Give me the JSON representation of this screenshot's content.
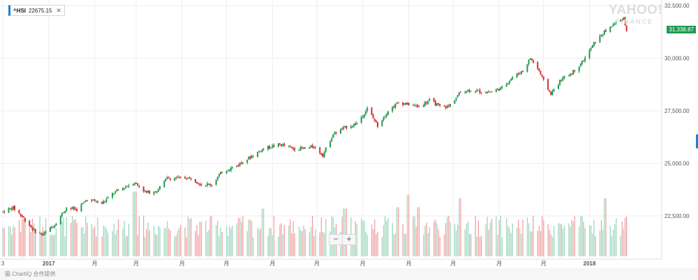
{
  "legend": {
    "symbol": "^HSI",
    "value": "22675.15",
    "close_label": "✕"
  },
  "watermark": {
    "brand": "YAHOO!",
    "sub": "FINANCE"
  },
  "price_tag": "31,338.87",
  "zoom": {
    "minus": "−",
    "plus": "+"
  },
  "footer": {
    "text": "圖 ChartIQ 合作提供"
  },
  "colors": {
    "up": "#1f9a52",
    "down": "#d62d2d",
    "up_volume": "#9fd6bd",
    "down_volume": "#f2a0a0",
    "grid": "#eeeeee"
  },
  "chart_data": {
    "type": "candlestick",
    "title": "",
    "xlabel": "",
    "ylabel": "",
    "ylim": [
      20000,
      32500
    ],
    "grid": true,
    "y_ticks": [
      "32,500.00",
      "30,000.00",
      "27,500.00",
      "25,000.00",
      "22,500.00"
    ],
    "y_tick_values": [
      32500,
      30000,
      27500,
      25000,
      22500
    ],
    "x_ticks": [
      {
        "label": "3",
        "x": "2016-12-01"
      },
      {
        "label": "2017",
        "x": "2017-01-01",
        "bold": true
      },
      {
        "label": "月",
        "x": "2017-02-01"
      },
      {
        "label": "月",
        "x": "2017-03-01"
      },
      {
        "label": "月",
        "x": "2017-04-01"
      },
      {
        "label": "月",
        "x": "2017-05-01"
      },
      {
        "label": "月",
        "x": "2017-06-01"
      },
      {
        "label": "月",
        "x": "2017-07-01"
      },
      {
        "label": "月",
        "x": "2017-08-01"
      },
      {
        "label": "月",
        "x": "2017-09-01"
      },
      {
        "label": "月",
        "x": "2017-10-01"
      },
      {
        "label": "月",
        "x": "2017-11-01"
      },
      {
        "label": "月",
        "x": "2017-12-01"
      },
      {
        "label": "2018",
        "x": "2018-01-01",
        "bold": true
      }
    ],
    "x_range": [
      "2016-12-01",
      "2018-01-29"
    ],
    "last_close": 31338.87,
    "price_path": [
      [
        "2016-12-01",
        22700
      ],
      [
        "2016-12-08",
        22900
      ],
      [
        "2016-12-15",
        22400
      ],
      [
        "2016-12-22",
        21800
      ],
      [
        "2016-12-28",
        21600
      ],
      [
        "2017-01-05",
        22100
      ],
      [
        "2017-01-13",
        22900
      ],
      [
        "2017-01-20",
        22800
      ],
      [
        "2017-01-27",
        23300
      ],
      [
        "2017-02-06",
        23100
      ],
      [
        "2017-02-14",
        23600
      ],
      [
        "2017-02-22",
        23900
      ],
      [
        "2017-02-28",
        24100
      ],
      [
        "2017-03-08",
        23600
      ],
      [
        "2017-03-15",
        23700
      ],
      [
        "2017-03-22",
        24300
      ],
      [
        "2017-03-29",
        24300
      ],
      [
        "2017-04-07",
        24300
      ],
      [
        "2017-04-14",
        24000
      ],
      [
        "2017-04-21",
        24000
      ],
      [
        "2017-04-28",
        24600
      ],
      [
        "2017-05-08",
        24900
      ],
      [
        "2017-05-17",
        25300
      ],
      [
        "2017-05-26",
        25700
      ],
      [
        "2017-06-06",
        25900
      ],
      [
        "2017-06-15",
        25700
      ],
      [
        "2017-06-23",
        25700
      ],
      [
        "2017-06-29",
        25800
      ],
      [
        "2017-07-05",
        25400
      ],
      [
        "2017-07-12",
        26400
      ],
      [
        "2017-07-20",
        26700
      ],
      [
        "2017-07-28",
        26900
      ],
      [
        "2017-08-04",
        27600
      ],
      [
        "2017-08-11",
        26800
      ],
      [
        "2017-08-18",
        27500
      ],
      [
        "2017-08-25",
        27900
      ],
      [
        "2017-09-01",
        27800
      ],
      [
        "2017-09-08",
        27700
      ],
      [
        "2017-09-15",
        28000
      ],
      [
        "2017-09-22",
        27700
      ],
      [
        "2017-09-28",
        27700
      ],
      [
        "2017-10-06",
        28400
      ],
      [
        "2017-10-13",
        28500
      ],
      [
        "2017-10-20",
        28400
      ],
      [
        "2017-10-27",
        28400
      ],
      [
        "2017-11-03",
        28600
      ],
      [
        "2017-11-10",
        29100
      ],
      [
        "2017-11-17",
        29400
      ],
      [
        "2017-11-22",
        30000
      ],
      [
        "2017-11-28",
        29400
      ],
      [
        "2017-12-01",
        28900
      ],
      [
        "2017-12-06",
        28300
      ],
      [
        "2017-12-13",
        29000
      ],
      [
        "2017-12-20",
        29300
      ],
      [
        "2017-12-28",
        29900
      ],
      [
        "2018-01-05",
        30800
      ],
      [
        "2018-01-12",
        31300
      ],
      [
        "2018-01-19",
        31700
      ],
      [
        "2018-01-24",
        31900
      ],
      [
        "2018-01-26",
        31339
      ]
    ],
    "volume_spikes": [
      [
        "2016-12-15",
        0.55
      ],
      [
        "2017-02-28",
        0.95
      ],
      [
        "2017-05-26",
        0.7
      ],
      [
        "2017-07-20",
        0.7
      ],
      [
        "2017-08-25",
        0.72
      ],
      [
        "2017-09-01",
        0.9
      ],
      [
        "2017-09-08",
        0.72
      ],
      [
        "2017-10-06",
        0.85
      ],
      [
        "2018-01-12",
        0.85
      ]
    ]
  }
}
